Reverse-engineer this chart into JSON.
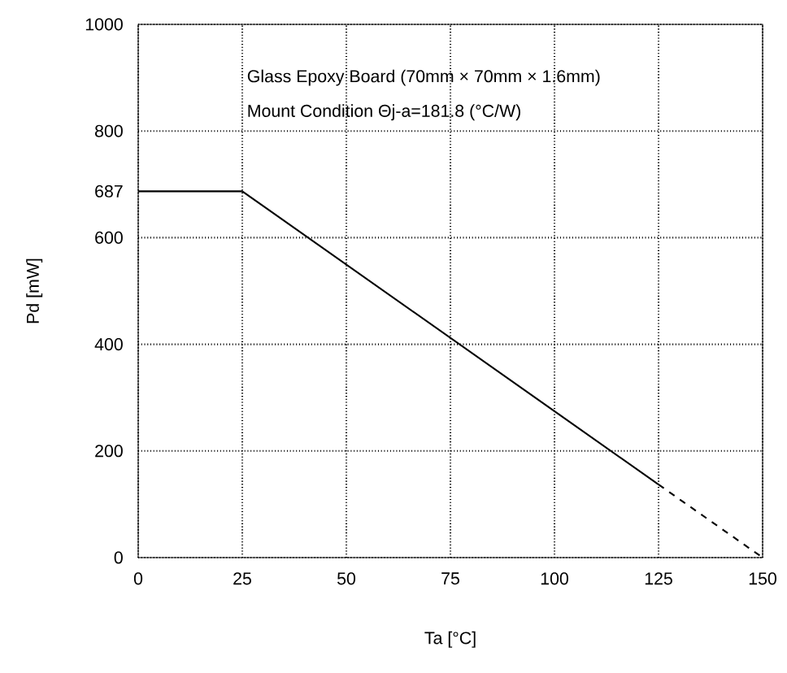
{
  "chart_data": {
    "type": "line",
    "xlabel": "Ta [°C]",
    "ylabel": "Pd [mW]",
    "xlim": [
      0,
      150
    ],
    "ylim": [
      0,
      1000
    ],
    "xticks": [
      0,
      25,
      50,
      75,
      100,
      125,
      150
    ],
    "yticks": [
      0,
      200,
      400,
      600,
      {
        "value": 687,
        "label": "687"
      },
      800,
      1000
    ],
    "grid": true,
    "marker": "none",
    "series": [
      {
        "color": "#000000",
        "line_style": "solid",
        "x": [
          0,
          25,
          125
        ],
        "values": [
          687,
          687,
          137
        ]
      },
      {
        "color": "#000000",
        "line_style": "dashed",
        "x": [
          125,
          150
        ],
        "values": [
          137,
          0
        ]
      }
    ],
    "annotations": [
      "Glass Epoxy Board (70mm × 70mm × 1.6mm)",
      "Mount Condition Θj-a=181.8 (°C/W)"
    ]
  }
}
